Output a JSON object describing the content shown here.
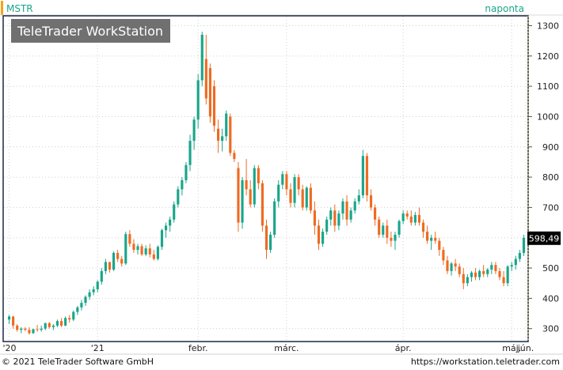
{
  "symbol": "MSTR",
  "interval": "naponta",
  "watermark": "TeleTrader WorkStation",
  "last_price_label": "598,49",
  "footer": {
    "copyright": "© 2021 TeleTrader Software GmbH",
    "url": "https://workstation.teletrader.com"
  },
  "colors": {
    "up": "#1aa58a",
    "down": "#ee6b22",
    "header_text": "#1aa58a",
    "accent_bar": "#f5a31a",
    "frame": "#1a2a44",
    "grid": "#d0d0d0",
    "label_bg": "#000000",
    "watermark_bg": "#707070"
  },
  "chart_data": {
    "type": "candlestick",
    "title": "MSTR",
    "xlabel": "",
    "ylabel": "",
    "ylim": [
      260,
      1330
    ],
    "yticks": [
      300,
      400,
      500,
      600,
      700,
      800,
      900,
      1000,
      1100,
      1200,
      1300
    ],
    "x_tick_labels": [
      "'20",
      "'21",
      "febr.",
      "márc.",
      "ápr.",
      "máj.",
      "jún."
    ],
    "x_tick_index": [
      0,
      22,
      47,
      69,
      98,
      125,
      150
    ],
    "grid": true,
    "last_value": 598.49,
    "series": [
      {
        "values": [
          [
            330,
            345,
            315,
            340
          ],
          [
            340,
            342,
            300,
            310
          ],
          [
            310,
            315,
            290,
            296
          ],
          [
            296,
            305,
            285,
            300
          ],
          [
            300,
            305,
            292,
            296
          ],
          [
            296,
            305,
            280,
            285
          ],
          [
            285,
            300,
            283,
            298
          ],
          [
            298,
            312,
            290,
            296
          ],
          [
            296,
            310,
            290,
            300
          ],
          [
            300,
            320,
            295,
            318
          ],
          [
            318,
            322,
            300,
            305
          ],
          [
            305,
            315,
            295,
            310
          ],
          [
            310,
            330,
            305,
            325
          ],
          [
            325,
            335,
            305,
            310
          ],
          [
            310,
            340,
            308,
            335
          ],
          [
            335,
            345,
            320,
            330
          ],
          [
            330,
            360,
            325,
            355
          ],
          [
            355,
            375,
            345,
            370
          ],
          [
            370,
            395,
            360,
            385
          ],
          [
            385,
            410,
            375,
            405
          ],
          [
            405,
            430,
            395,
            420
          ],
          [
            420,
            440,
            410,
            430
          ],
          [
            430,
            460,
            420,
            455
          ],
          [
            455,
            500,
            445,
            490
          ],
          [
            490,
            530,
            480,
            520
          ],
          [
            520,
            520,
            485,
            495
          ],
          [
            495,
            555,
            490,
            550
          ],
          [
            550,
            560,
            520,
            530
          ],
          [
            530,
            540,
            505,
            515
          ],
          [
            515,
            620,
            510,
            612
          ],
          [
            612,
            625,
            570,
            580
          ],
          [
            580,
            595,
            550,
            560
          ],
          [
            560,
            580,
            545,
            572
          ],
          [
            572,
            580,
            540,
            545
          ],
          [
            545,
            575,
            540,
            565
          ],
          [
            565,
            580,
            535,
            545
          ],
          [
            545,
            560,
            525,
            530
          ],
          [
            530,
            575,
            525,
            570
          ],
          [
            570,
            630,
            560,
            625
          ],
          [
            625,
            650,
            600,
            640
          ],
          [
            640,
            670,
            620,
            660
          ],
          [
            660,
            720,
            650,
            710
          ],
          [
            710,
            770,
            700,
            760
          ],
          [
            760,
            800,
            740,
            790
          ],
          [
            790,
            850,
            780,
            840
          ],
          [
            840,
            940,
            820,
            920
          ],
          [
            920,
            1000,
            890,
            990
          ],
          [
            990,
            1140,
            960,
            1120
          ],
          [
            1120,
            1280,
            1100,
            1270
          ],
          [
            1190,
            1270,
            1040,
            1060
          ],
          [
            1160,
            1175,
            980,
            1000
          ],
          [
            1100,
            1120,
            950,
            970
          ],
          [
            960,
            990,
            880,
            920
          ],
          [
            920,
            960,
            885,
            935
          ],
          [
            935,
            1020,
            920,
            1010
          ],
          [
            1000,
            1010,
            870,
            880
          ],
          [
            880,
            890,
            850,
            860
          ],
          [
            830,
            850,
            620,
            650
          ],
          [
            650,
            800,
            630,
            790
          ],
          [
            790,
            860,
            740,
            760
          ],
          [
            760,
            790,
            700,
            710
          ],
          [
            710,
            840,
            700,
            830
          ],
          [
            830,
            840,
            760,
            780
          ],
          [
            780,
            790,
            620,
            640
          ],
          [
            640,
            660,
            530,
            560
          ],
          [
            560,
            620,
            550,
            610
          ],
          [
            610,
            730,
            600,
            720
          ],
          [
            720,
            790,
            700,
            775
          ],
          [
            775,
            820,
            760,
            810
          ],
          [
            810,
            820,
            740,
            760
          ],
          [
            760,
            780,
            700,
            715
          ],
          [
            715,
            810,
            700,
            800
          ],
          [
            800,
            810,
            740,
            760
          ],
          [
            760,
            775,
            690,
            700
          ],
          [
            700,
            770,
            690,
            765
          ],
          [
            765,
            780,
            680,
            690
          ],
          [
            690,
            720,
            610,
            640
          ],
          [
            640,
            660,
            560,
            580
          ],
          [
            580,
            630,
            570,
            620
          ],
          [
            620,
            670,
            610,
            660
          ],
          [
            660,
            700,
            640,
            690
          ],
          [
            690,
            710,
            620,
            640
          ],
          [
            640,
            690,
            625,
            680
          ],
          [
            680,
            730,
            660,
            720
          ],
          [
            720,
            740,
            640,
            660
          ],
          [
            660,
            700,
            650,
            690
          ],
          [
            690,
            730,
            680,
            720
          ],
          [
            720,
            760,
            710,
            740
          ],
          [
            740,
            890,
            730,
            870
          ],
          [
            870,
            880,
            720,
            740
          ],
          [
            740,
            760,
            690,
            700
          ],
          [
            700,
            710,
            640,
            660
          ],
          [
            660,
            670,
            600,
            610
          ],
          [
            610,
            650,
            600,
            640
          ],
          [
            640,
            660,
            580,
            600
          ],
          [
            600,
            620,
            570,
            590
          ],
          [
            590,
            620,
            560,
            610
          ],
          [
            610,
            660,
            600,
            655
          ],
          [
            655,
            690,
            645,
            680
          ],
          [
            680,
            690,
            660,
            670
          ],
          [
            670,
            690,
            640,
            650
          ],
          [
            650,
            685,
            640,
            675
          ],
          [
            675,
            700,
            640,
            650
          ],
          [
            650,
            660,
            600,
            620
          ],
          [
            620,
            640,
            580,
            590
          ],
          [
            590,
            610,
            560,
            600
          ],
          [
            600,
            620,
            580,
            590
          ],
          [
            590,
            600,
            540,
            560
          ],
          [
            560,
            570,
            510,
            525
          ],
          [
            525,
            540,
            480,
            490
          ],
          [
            490,
            520,
            475,
            515
          ],
          [
            515,
            530,
            490,
            505
          ],
          [
            505,
            515,
            470,
            480
          ],
          [
            480,
            500,
            430,
            450
          ],
          [
            450,
            480,
            440,
            470
          ],
          [
            470,
            490,
            455,
            485
          ],
          [
            485,
            500,
            460,
            470
          ],
          [
            470,
            495,
            460,
            490
          ],
          [
            490,
            510,
            470,
            480
          ],
          [
            480,
            500,
            470,
            495
          ],
          [
            495,
            520,
            480,
            510
          ],
          [
            510,
            520,
            480,
            490
          ],
          [
            490,
            500,
            460,
            470
          ],
          [
            470,
            490,
            440,
            450
          ],
          [
            450,
            510,
            440,
            505
          ],
          [
            505,
            520,
            490,
            510
          ],
          [
            510,
            540,
            495,
            530
          ],
          [
            530,
            560,
            520,
            550
          ],
          [
            550,
            610,
            540,
            600
          ]
        ]
      }
    ]
  }
}
